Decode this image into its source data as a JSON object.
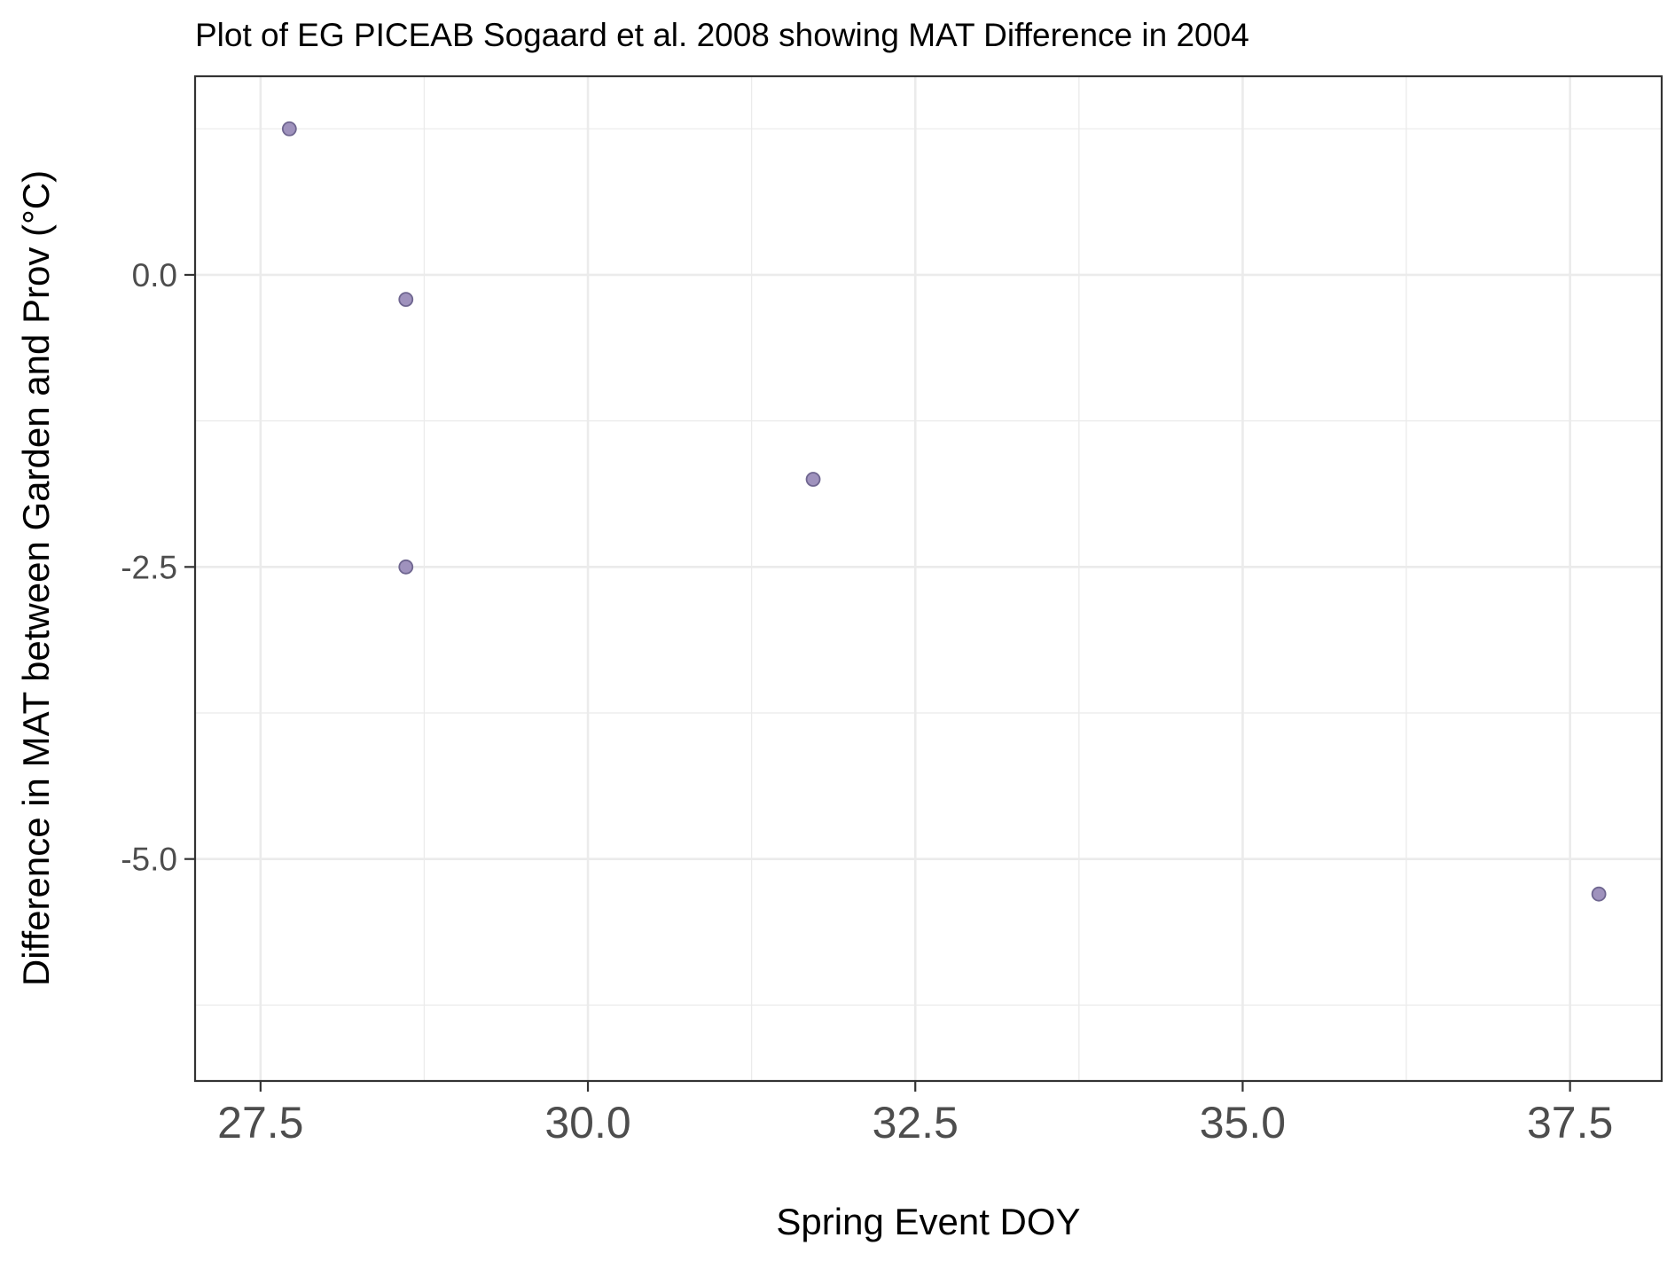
{
  "chart_data": {
    "type": "scatter",
    "title": "Plot of EG PICEAB Sogaard et al. 2008 showing MAT Difference in 2004",
    "xlabel": "Spring Event DOY",
    "ylabel": "Difference in MAT between Garden and Prov (°C)",
    "xlim": [
      27.0,
      38.2
    ],
    "ylim": [
      -6.9,
      1.7
    ],
    "x_ticks": [
      27.5,
      30.0,
      32.5,
      35.0,
      37.5
    ],
    "x_tick_labels": [
      "27.5",
      "30.0",
      "32.5",
      "35.0",
      "37.5"
    ],
    "y_ticks": [
      0.0,
      -2.5,
      -5.0
    ],
    "y_tick_labels": [
      "0.0",
      "-2.5",
      "-5.0"
    ],
    "grid": true,
    "point_color": "#9f92bd",
    "point_stroke": "#6f6690",
    "series": [
      {
        "points": [
          {
            "x": 27.72,
            "y": 1.25
          },
          {
            "x": 28.61,
            "y": -0.21
          },
          {
            "x": 28.61,
            "y": -2.5
          },
          {
            "x": 31.72,
            "y": -1.75
          },
          {
            "x": 37.72,
            "y": -5.3
          }
        ]
      }
    ]
  }
}
